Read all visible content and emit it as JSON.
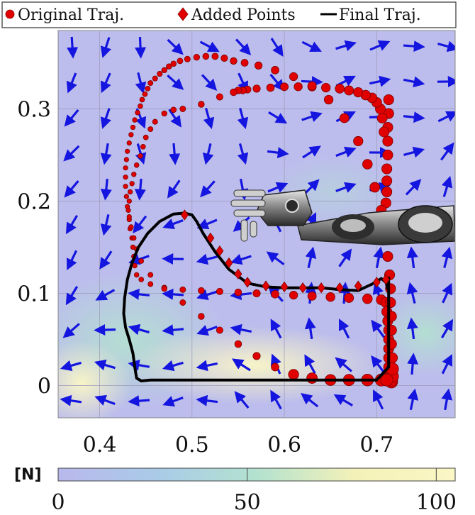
{
  "chart_data": {
    "type": "scatter",
    "title": "",
    "xlabel": "",
    "ylabel": "",
    "xlim": [
      0.355,
      0.785
    ],
    "ylim": [
      -0.035,
      0.385
    ],
    "x_ticks": [
      0.4,
      0.5,
      0.6,
      0.7
    ],
    "x_tick_labels": [
      "0.4",
      "0.5",
      "0.6",
      "0.7"
    ],
    "y_ticks": [
      0,
      0.1,
      0.2,
      0.3
    ],
    "y_tick_labels": [
      "0",
      "0.1",
      "0.2",
      "0.3"
    ],
    "grid": true,
    "legend_position": "top",
    "legend": [
      {
        "label": "Original Traj.",
        "marker": "circle",
        "color": "#e00000"
      },
      {
        "label": "Added Points",
        "marker": "diamond",
        "color": "#e00000"
      },
      {
        "label": "Final Traj.",
        "marker": "line",
        "color": "#000000"
      }
    ],
    "colorbar": {
      "unit_label": "[N]",
      "range": [
        0,
        105
      ],
      "ticks": [
        0,
        50,
        100
      ],
      "tick_labels": [
        "0",
        "50",
        "100"
      ],
      "colors": [
        "#b9b8ec",
        "#a9cbe8",
        "#b3e2cf",
        "#f4f1b8",
        "#fbf7c6"
      ]
    },
    "series": [
      {
        "name": "Original Traj.",
        "kind": "points",
        "x": [
          0.713,
          0.713,
          0.712,
          0.712,
          0.712,
          0.711,
          0.711,
          0.711,
          0.71,
          0.708,
          0.706,
          0.704,
          0.7,
          0.695,
          0.688,
          0.68,
          0.67,
          0.66,
          0.645,
          0.63,
          0.615,
          0.6,
          0.585,
          0.57,
          0.56,
          0.555,
          0.55,
          0.545,
          0.53,
          0.51,
          0.49,
          0.48,
          0.47,
          0.46,
          0.455,
          0.45,
          0.447,
          0.444,
          0.44,
          0.437,
          0.435,
          0.433,
          0.432,
          0.431,
          0.432,
          0.433,
          0.435,
          0.436,
          0.437,
          0.438,
          0.44,
          0.445,
          0.455,
          0.47,
          0.49,
          0.51,
          0.53,
          0.55,
          0.57,
          0.59,
          0.61,
          0.63,
          0.65,
          0.67,
          0.69,
          0.705,
          0.71,
          0.711,
          0.712,
          0.713,
          0.713,
          0.713,
          0.713,
          0.713,
          0.714,
          0.714,
          0.715,
          0.716,
          0.716,
          0.717,
          0.717,
          0.717,
          0.716,
          0.716,
          0.716,
          0.715,
          0.715,
          0.714,
          0.712,
          0.71,
          0.705,
          0.698,
          0.69,
          0.68,
          0.665,
          0.648,
          0.63,
          0.61,
          0.59,
          0.572,
          0.557,
          0.545,
          0.535,
          0.525,
          0.515,
          0.505,
          0.495,
          0.487,
          0.48,
          0.475,
          0.47,
          0.465,
          0.46,
          0.455,
          0.452,
          0.449,
          0.446,
          0.444,
          0.441,
          0.438,
          0.436,
          0.434,
          0.432,
          0.43,
          0.429,
          0.428,
          0.428,
          0.428,
          0.429,
          0.43,
          0.432,
          0.434,
          0.437,
          0.44,
          0.445,
          0.455,
          0.47,
          0.49,
          0.51,
          0.53,
          0.55,
          0.57,
          0.59,
          0.61,
          0.63,
          0.65,
          0.67,
          0.69,
          0.705,
          0.711
        ],
        "y": [
          0.31,
          0.295,
          0.28,
          0.265,
          0.25,
          0.235,
          0.222,
          0.21,
          0.198,
          0.275,
          0.29,
          0.3,
          0.307,
          0.312,
          0.315,
          0.318,
          0.32,
          0.322,
          0.323,
          0.324,
          0.324,
          0.324,
          0.323,
          0.322,
          0.321,
          0.32,
          0.32,
          0.318,
          0.313,
          0.305,
          0.3,
          0.299,
          0.295,
          0.286,
          0.278,
          0.269,
          0.259,
          0.249,
          0.239,
          0.229,
          0.219,
          0.21,
          0.2,
          0.19,
          0.18,
          0.17,
          0.16,
          0.15,
          0.14,
          0.13,
          0.12,
          0.115,
          0.11,
          0.106,
          0.104,
          0.103,
          0.102,
          0.101,
          0.1,
          0.099,
          0.098,
          0.097,
          0.096,
          0.095,
          0.094,
          0.093,
          0.09,
          0.08,
          0.07,
          0.06,
          0.05,
          0.04,
          0.03,
          0.02,
          0.012,
          0.008,
          0.005,
          0.004,
          0.006,
          0.01,
          0.018,
          0.03,
          0.045,
          0.06,
          0.075,
          0.09,
          0.105,
          0.12,
          0.14,
          0.165,
          0.19,
          0.215,
          0.24,
          0.265,
          0.29,
          0.31,
          0.325,
          0.335,
          0.342,
          0.347,
          0.35,
          0.352,
          0.355,
          0.357,
          0.357,
          0.356,
          0.354,
          0.352,
          0.349,
          0.346,
          0.342,
          0.338,
          0.333,
          0.328,
          0.322,
          0.316,
          0.31,
          0.303,
          0.296,
          0.288,
          0.28,
          0.272,
          0.263,
          0.254,
          0.245,
          0.236,
          0.226,
          0.216,
          0.205,
          0.194,
          0.183,
          0.172,
          0.16,
          0.148,
          0.135,
          0.12,
          0.105,
          0.09,
          0.075,
          0.06,
          0.045,
          0.032,
          0.02,
          0.012,
          0.008,
          0.006,
          0.006,
          0.006,
          0.006,
          0.006
        ]
      },
      {
        "name": "Added Points",
        "kind": "points",
        "x": [
          0.492,
          0.52,
          0.53,
          0.54,
          0.55,
          0.56,
          0.58,
          0.6,
          0.62,
          0.64,
          0.66,
          0.68,
          0.7,
          0.71
        ],
        "y": [
          0.185,
          0.16,
          0.146,
          0.133,
          0.121,
          0.112,
          0.108,
          0.107,
          0.106,
          0.106,
          0.106,
          0.108,
          0.112,
          0.115
        ]
      },
      {
        "name": "Final Traj.",
        "kind": "line",
        "x": [
          0.713,
          0.713,
          0.712,
          0.71,
          0.705,
          0.695,
          0.68,
          0.66,
          0.64,
          0.62,
          0.6,
          0.58,
          0.56,
          0.54,
          0.525,
          0.512,
          0.505,
          0.5,
          0.492,
          0.48,
          0.465,
          0.452,
          0.442,
          0.435,
          0.43,
          0.427,
          0.426,
          0.428,
          0.432,
          0.436,
          0.438,
          0.44,
          0.445,
          0.455,
          0.47,
          0.5,
          0.55,
          0.6,
          0.65,
          0.7,
          0.713,
          0.713
        ],
        "y": [
          0.118,
          0.11,
          0.105,
          0.112,
          0.116,
          0.11,
          0.103,
          0.104,
          0.106,
          0.106,
          0.106,
          0.107,
          0.111,
          0.126,
          0.145,
          0.165,
          0.178,
          0.185,
          0.187,
          0.186,
          0.178,
          0.165,
          0.15,
          0.133,
          0.115,
          0.095,
          0.078,
          0.063,
          0.05,
          0.035,
          0.02,
          0.008,
          0.005,
          0.006,
          0.006,
          0.006,
          0.006,
          0.006,
          0.006,
          0.006,
          0.02,
          0.118
        ]
      }
    ]
  }
}
